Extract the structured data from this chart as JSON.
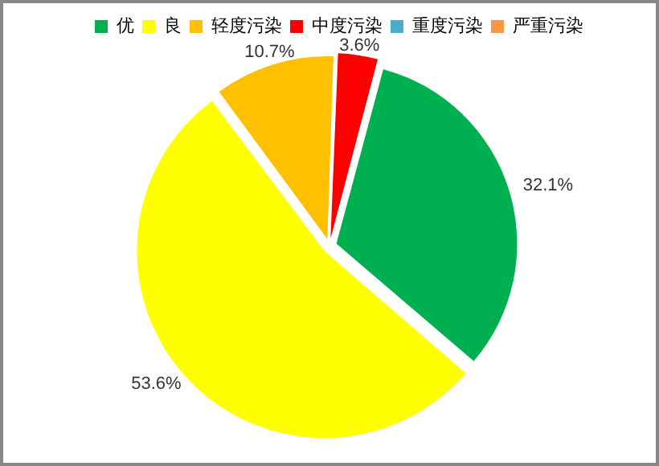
{
  "chart_data": {
    "type": "pie",
    "categories": [
      "优",
      "良",
      "轻度污染",
      "中度污染",
      "重度污染",
      "严重污染"
    ],
    "values": [
      32.1,
      53.6,
      10.7,
      3.6,
      0,
      0
    ],
    "colors": [
      "#00b050",
      "#ffff00",
      "#ffc000",
      "#ff0000",
      "#4bacc6",
      "#f79646"
    ],
    "value_labels": [
      "32.1%",
      "53.6%",
      "10.7%",
      "3.6%",
      null,
      null
    ],
    "legend": "top right"
  }
}
